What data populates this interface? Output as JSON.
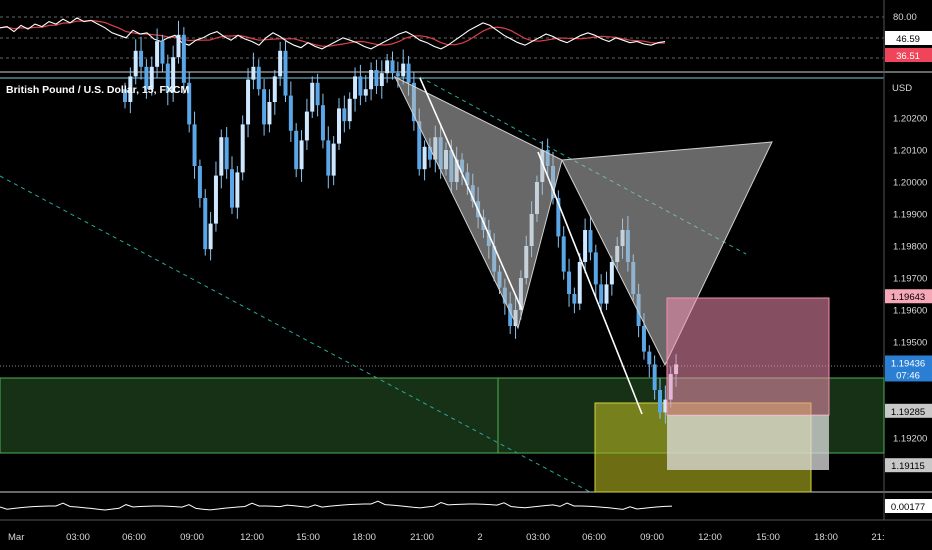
{
  "chart_data": {
    "type": "candlestick",
    "symbol_title": "British Pound / U.S. Dollar, 15, FXCM",
    "price_axis": {
      "unit": "USD",
      "ticks": [
        1.202,
        1.201,
        1.2,
        1.199,
        1.198,
        1.197,
        1.196,
        1.195,
        1.192
      ],
      "tick_labels": [
        "1.20200",
        "1.20100",
        "1.20000",
        "1.19900",
        "1.19800",
        "1.19700",
        "1.19600",
        "1.19500",
        "1.19200"
      ]
    },
    "price_tags": [
      {
        "label": "1.19643",
        "value": 1.19643,
        "color": "#f7a8b8",
        "text_color": "#000000"
      },
      {
        "label": "1.19436",
        "value": 1.19436,
        "color": "#2a7fd4",
        "text_color": "#ffffff",
        "sub": "07:46"
      },
      {
        "label": "1.19285",
        "value": 1.19285,
        "color": "#c8c8c8",
        "text_color": "#000000"
      },
      {
        "label": "1.19115",
        "value": 1.19115,
        "color": "#c8c8c8",
        "text_color": "#000000"
      }
    ],
    "time_axis": [
      "Mar",
      "03:00",
      "06:00",
      "09:00",
      "12:00",
      "15:00",
      "18:00",
      "21:00",
      "2",
      "03:00",
      "06:00",
      "09:00",
      "12:00",
      "15:00",
      "18:00",
      "21:"
    ],
    "oscillator": {
      "ticks": [
        "80.00"
      ],
      "tags": [
        {
          "label": "46.59",
          "color": "#ffffff",
          "text_color": "#000000"
        },
        {
          "label": "36.51",
          "color": "#f0445a",
          "text_color": "#ffffff"
        }
      ],
      "values": [
        68,
        70,
        62,
        72,
        66,
        74,
        70,
        78,
        74,
        82,
        76,
        84,
        78,
        80,
        74,
        68,
        60,
        56,
        52,
        64,
        58,
        60,
        50,
        46,
        52,
        56,
        44,
        40,
        48,
        52,
        58,
        62,
        54,
        48,
        56,
        50,
        46,
        40,
        52,
        60,
        54,
        46,
        40,
        36,
        44,
        38,
        34,
        40,
        46,
        52,
        48,
        44,
        38,
        34,
        40,
        46,
        52,
        58,
        62,
        56,
        48,
        44,
        38,
        34,
        40,
        48,
        56,
        64,
        70,
        76,
        72,
        64,
        56,
        50,
        44,
        40,
        46,
        52,
        58,
        54,
        48,
        44,
        50,
        56,
        60,
        56,
        50,
        46,
        52,
        48,
        44,
        46,
        42,
        40,
        44,
        46
      ]
    },
    "volume_indicator": {
      "tag": {
        "label": "0.00177",
        "color": "#ffffff",
        "text_color": "#000000"
      }
    },
    "series_closes": [
      1.2025,
      1.2033,
      1.2041,
      1.2036,
      1.2029,
      1.2036,
      1.2044,
      1.2037,
      1.2028,
      1.2039,
      1.2046,
      1.2031,
      1.2018,
      1.2005,
      1.1995,
      1.1979,
      1.1987,
      1.2002,
      1.2014,
      1.2004,
      1.1992,
      1.2003,
      1.2018,
      1.2032,
      1.2036,
      1.2029,
      1.2018,
      1.2025,
      1.2033,
      1.2041,
      1.2027,
      1.2016,
      1.2004,
      1.2013,
      1.2022,
      1.2031,
      1.2024,
      1.2013,
      1.2002,
      1.2012,
      1.2023,
      1.2019,
      1.2026,
      1.2033,
      1.2027,
      1.2029,
      1.2035,
      1.203,
      1.2034,
      1.2038,
      1.2034,
      1.2033,
      1.2037,
      1.2031,
      1.2019,
      1.2004,
      1.2011,
      1.2007,
      1.2014,
      1.2004,
      1.201,
      1.2,
      1.2007,
      1.2003,
      1.1999,
      1.1994,
      1.1989,
      1.1985,
      1.198,
      1.1972,
      1.1967,
      1.1962,
      1.1955,
      1.196,
      1.197,
      1.198,
      1.199,
      1.2,
      1.201,
      1.2005,
      1.1995,
      1.1983,
      1.1972,
      1.1965,
      1.1962,
      1.1975,
      1.1985,
      1.1978,
      1.1968,
      1.1962,
      1.1968,
      1.1975,
      1.198,
      1.1985,
      1.1975,
      1.1965,
      1.1955,
      1.1947,
      1.1943,
      1.1935,
      1.1928,
      1.1932,
      1.194,
      1.1943
    ]
  }
}
